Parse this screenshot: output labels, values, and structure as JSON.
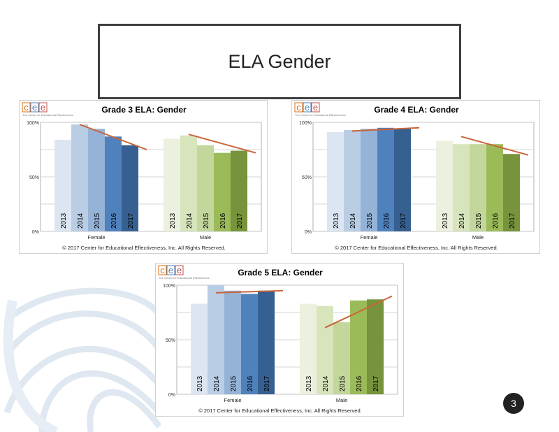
{
  "slide": {
    "title": "ELA Gender",
    "page_number": "3",
    "logo": {
      "letters": [
        "c",
        "e",
        "e"
      ],
      "tagline": "The Center for Educational Effectiveness"
    }
  },
  "colors": {
    "female": [
      "#dce6f2",
      "#b9cde5",
      "#95b3d7",
      "#4f81bd",
      "#376092"
    ],
    "male": [
      "#ebf1de",
      "#d7e4bc",
      "#c3d69b",
      "#9bbb59",
      "#77933c"
    ],
    "trend": "#c8653a",
    "logo": [
      "#e36c09",
      "#4f81bd",
      "#c0504d"
    ]
  },
  "chart_data": [
    {
      "type": "bar",
      "title": "Grade 3 ELA: Gender",
      "categories": [
        "Female",
        "Male"
      ],
      "series_labels": [
        "2013",
        "2014",
        "2015",
        "2016",
        "2017"
      ],
      "values": {
        "Female": [
          84,
          98,
          94,
          87,
          79
        ],
        "Male": [
          85,
          88,
          79,
          72,
          74
        ]
      },
      "trend": {
        "Female": [
          98,
          75
        ],
        "Male": [
          89,
          72
        ]
      },
      "yticks": [
        "0%",
        "50%",
        "100%"
      ],
      "ylim": [
        0,
        100
      ],
      "copyright": "© 2017 Center for Educational Effectiveness, Inc. All Rights Reserved."
    },
    {
      "type": "bar",
      "title": "Grade 4 ELA: Gender",
      "categories": [
        "Female",
        "Male"
      ],
      "series_labels": [
        "2013",
        "2014",
        "2015",
        "2016",
        "2017"
      ],
      "values": {
        "Female": [
          91,
          93,
          94,
          95,
          94
        ],
        "Male": [
          83,
          80,
          80,
          80,
          71
        ]
      },
      "trend": {
        "Female": [
          92,
          95
        ],
        "Male": [
          87,
          70
        ]
      },
      "yticks": [
        "0%",
        "50%",
        "100%"
      ],
      "ylim": [
        0,
        100
      ],
      "copyright": "© 2017 Center for Educational Effectiveness, Inc. All Rights Reserved."
    },
    {
      "type": "bar",
      "title": "Grade 5 ELA: Gender",
      "categories": [
        "Female",
        "Male"
      ],
      "series_labels": [
        "2013",
        "2014",
        "2015",
        "2016",
        "2017"
      ],
      "values": {
        "Female": [
          83,
          100,
          95,
          92,
          95
        ],
        "Male": [
          83,
          81,
          66,
          86,
          87
        ]
      },
      "trend": {
        "Female": [
          93,
          95
        ],
        "Male": [
          61,
          90
        ]
      },
      "yticks": [
        "0%",
        "50%",
        "100%"
      ],
      "ylim": [
        0,
        100
      ],
      "copyright": "© 2017 Center for Educational Effectiveness, Inc. All Rights Reserved."
    }
  ]
}
